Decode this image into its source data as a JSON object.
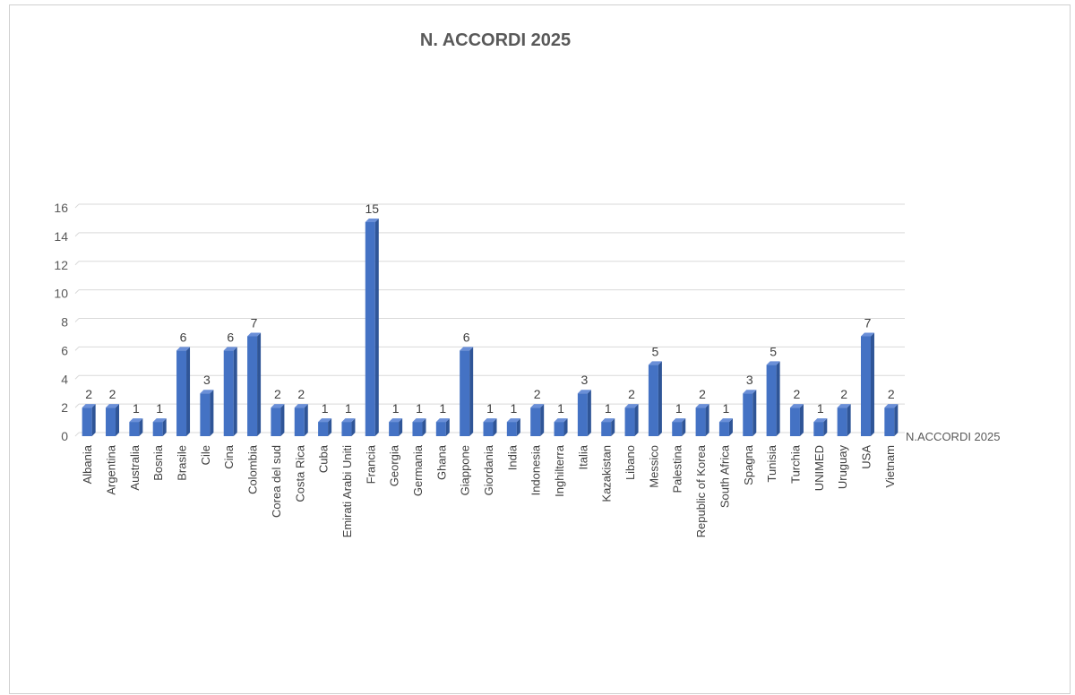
{
  "chart_data": {
    "type": "bar",
    "title": "N. ACCORDI 2025",
    "xlabel": "",
    "ylabel": "",
    "ylim": [
      0,
      16
    ],
    "yticks": [
      0,
      2,
      4,
      6,
      8,
      10,
      12,
      14,
      16
    ],
    "grid": true,
    "legend_position": "right",
    "bar_color": "#4472C4",
    "categories": [
      "Albania",
      "Argentina",
      "Australia",
      "Bosnia",
      "Brasile",
      "Cile",
      "Cina",
      "Colombia",
      "Corea del sud",
      "Costa Rica",
      "Cuba",
      "Emirati Arabi Uniti",
      "Francia",
      "Georgia",
      "Germania",
      "Ghana",
      "Giappone",
      "Giordania",
      "India",
      "Indonesia",
      "Inghilterra",
      "Italia",
      "Kazakistan",
      "Libano",
      "Messico",
      "Palestina",
      "Republic of Korea",
      "South Africa",
      "Spagna",
      "Tunisia",
      "Turchia",
      "UNIMED",
      "Uruguay",
      "USA",
      "Vietnam"
    ],
    "series": [
      {
        "name": "N.ACCORDI 2025",
        "values": [
          2,
          2,
          1,
          1,
          6,
          3,
          6,
          7,
          2,
          2,
          1,
          1,
          15,
          1,
          1,
          1,
          6,
          1,
          1,
          2,
          1,
          3,
          1,
          2,
          5,
          1,
          2,
          1,
          3,
          5,
          2,
          1,
          2,
          7,
          2
        ]
      }
    ]
  }
}
